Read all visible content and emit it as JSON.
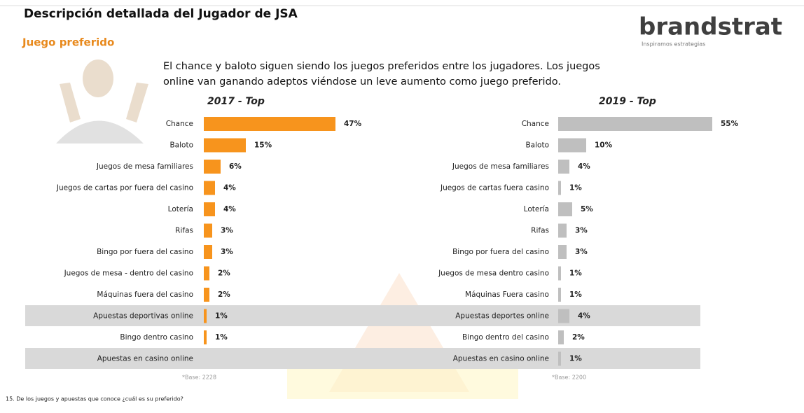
{
  "header": {
    "title": "Descripción detallada del Jugador de JSA",
    "subtitle": "Juego preferido",
    "logo": "brandstrat",
    "tagline": "Inspiramos estrategias",
    "description": [
      "El chance y baloto siguen siendo los juegos preferidos entre los jugadores. Los juegos",
      "online van ganando adeptos viéndose un leve aumento como juego preferido."
    ]
  },
  "chart_data": [
    {
      "type": "bar",
      "orientation": "horizontal",
      "title": "2017 - Top",
      "color": "#f7941d",
      "title_color": "#f7941d",
      "label_color": "#222222",
      "categories": [
        "Chance",
        "Baloto",
        "Juegos de mesa familiares",
        "Juegos de cartas por fuera del casino",
        "Lotería",
        "Rifas",
        "Bingo por fuera del casino",
        "Juegos de mesa - dentro del casino",
        "Máquinas fuera del casino",
        "Apuestas deportivas online",
        "Bingo dentro casino",
        "Apuestas en casino online"
      ],
      "values": [
        47,
        15,
        6,
        4,
        4,
        3,
        3,
        2,
        2,
        1,
        1,
        null
      ],
      "value_labels": [
        "47%",
        "15%",
        "6%",
        "4%",
        "4%",
        "3%",
        "3%",
        "2%",
        "2%",
        "1%",
        "1%",
        null
      ],
      "note": "*Base: 2228"
    },
    {
      "type": "bar",
      "orientation": "horizontal",
      "title": "2019 - Top",
      "color": "#bfbfbf",
      "title_color": "#595959",
      "label_color": "#1f3d7a",
      "categories": [
        "Chance",
        "Baloto",
        "Juegos de mesa familiares",
        "Juegos de cartas fuera casino",
        "Lotería",
        "Rifas",
        "Bingo por fuera del casino",
        "Juegos de mesa dentro casino",
        "Máquinas Fuera casino",
        "Apuestas deportes online",
        "Bingo dentro del casino",
        "Apuestas en casino online"
      ],
      "values": [
        55,
        10,
        4,
        1,
        5,
        3,
        3,
        1,
        1,
        4,
        2,
        1
      ],
      "value_labels": [
        "55%",
        "10%",
        "4%",
        "1%",
        "5%",
        "3%",
        "3%",
        "1%",
        "1%",
        "4%",
        "2%",
        "1%"
      ],
      "note": "*Base: 2200"
    }
  ],
  "footnote": "15. De los juegos y apuestas que conoce ¿cuál es su preferido?"
}
